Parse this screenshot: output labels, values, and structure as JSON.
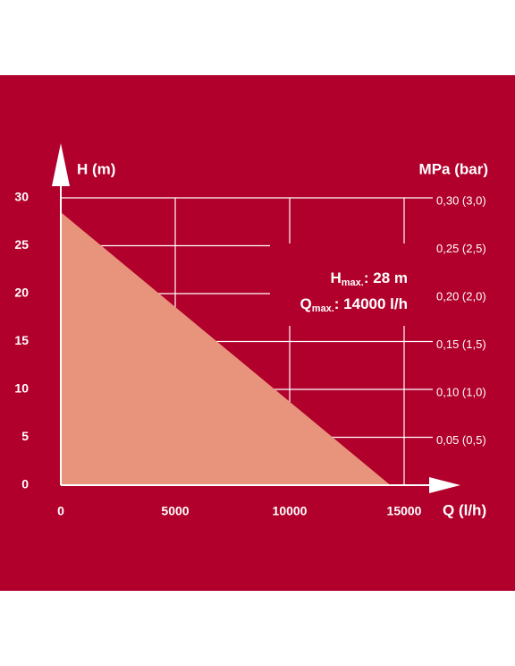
{
  "chart_data": {
    "type": "area",
    "x_label": "Q (l/h)",
    "y_label": "H (m)",
    "y2_label": "MPa (bar)",
    "x": [
      0,
      14400
    ],
    "series": [
      {
        "values": [
          28.5,
          0
        ],
        "color": "#e8937b"
      }
    ],
    "xlim": [
      0,
      15000
    ],
    "xticks": [
      0,
      5000,
      10000,
      15000
    ],
    "ylim": [
      0,
      30
    ],
    "yticks": [
      0,
      5,
      10,
      15,
      20,
      25,
      30
    ],
    "y2lim": [
      0,
      0.3
    ],
    "y2ticks": [
      {
        "value": 0.05,
        "label": "0,05 (0,5)"
      },
      {
        "value": 0.1,
        "label": "0,10 (1,0)"
      },
      {
        "value": 0.15,
        "label": "0,15 (1,5)"
      },
      {
        "value": 0.2,
        "label": "0,20 (2,0)"
      },
      {
        "value": 0.25,
        "label": "0,25 (2,5)"
      },
      {
        "value": 0.3,
        "label": "0,30 (3,0)"
      }
    ],
    "grid": true,
    "annotations": [
      {
        "main": "H",
        "sub": "max.",
        "rest": ": 28 m"
      },
      {
        "main": "Q",
        "sub": "max.",
        "rest": ": 14000 l/h"
      }
    ]
  }
}
